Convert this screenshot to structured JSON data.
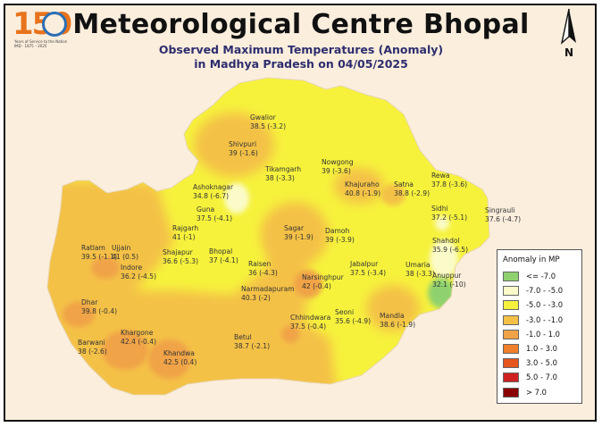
{
  "header": {
    "title": "Meteorological Centre Bhopal",
    "subtitle_line1": "Observed Maximum Temperatures (Anomaly)",
    "subtitle_line2": "in Madhya Pradesh on 04/05/2025"
  },
  "logo": {
    "number": "150",
    "caption_line1": "Years of Service to the Nation",
    "caption_line2": "IMD · 1875 – 2025",
    "ring_color": "#2b6fb5",
    "number_color": "#e8731c"
  },
  "north_arrow": {
    "label": "N",
    "icon": "north-arrow-icon"
  },
  "legend": {
    "title": "Anomaly in MP",
    "items": [
      {
        "label": "<= -7.0",
        "color": "#8fd16e"
      },
      {
        "label": "-7.0 - -5.0",
        "color": "#fbfbc9"
      },
      {
        "label": "-5.0 - -3.0",
        "color": "#f6f23c"
      },
      {
        "label": "-3.0 - -1.0",
        "color": "#f4c147"
      },
      {
        "label": "-1.0 - 1.0",
        "color": "#f0a346"
      },
      {
        "label": "1.0 - 3.0",
        "color": "#ef7f2a"
      },
      {
        "label": "3.0 - 5.0",
        "color": "#e4561c"
      },
      {
        "label": "5.0 - 7.0",
        "color": "#cf2121"
      },
      {
        "label": "> 7.0",
        "color": "#8b0000"
      }
    ]
  },
  "stations": [
    {
      "name": "Gwalior",
      "value": "38.5 (-3.2)"
    },
    {
      "name": "Shivpuri",
      "value": "39 (-1.6)"
    },
    {
      "name": "Tikamgarh",
      "value": "38 (-3.3)"
    },
    {
      "name": "Nowgong",
      "value": "39 (-3.6)"
    },
    {
      "name": "Rewa",
      "value": "37.8 (-3.6)"
    },
    {
      "name": "Satna",
      "value": "38.8 (-2.9)"
    },
    {
      "name": "Khajuraho",
      "value": "40.8 (-1.9)"
    },
    {
      "name": "Ashoknagar",
      "value": "34.8 (-6.7)"
    },
    {
      "name": "Guna",
      "value": "37.5 (-4.1)"
    },
    {
      "name": "Sidhi",
      "value": "37.2 (-5.1)"
    },
    {
      "name": "Singrauli",
      "value": "37.6 (-4.7)"
    },
    {
      "name": "Rajgarh",
      "value": "41 (-1)"
    },
    {
      "name": "Sagar",
      "value": "39 (-1.9)"
    },
    {
      "name": "Damoh",
      "value": "39 (-3.9)"
    },
    {
      "name": "Shahdol",
      "value": "35.9 (-6.5)"
    },
    {
      "name": "Ratlam",
      "value": "39.5 (-1.1)"
    },
    {
      "name": "Ujjain",
      "value": "41 (0.5)"
    },
    {
      "name": "Shajapur",
      "value": "36.6 (-5.3)"
    },
    {
      "name": "Bhopal",
      "value": "37 (-4.1)"
    },
    {
      "name": "Raisen",
      "value": "36 (-4.3)"
    },
    {
      "name": "Jabalpur",
      "value": "37.5 (-3.4)"
    },
    {
      "name": "Umaria",
      "value": "38 (-3.3)"
    },
    {
      "name": "Anuppur",
      "value": "32.1 (-10)"
    },
    {
      "name": "Narsinghpur",
      "value": "42 (-0.4)"
    },
    {
      "name": "Indore",
      "value": "36.2 (-4.5)"
    },
    {
      "name": "Narmadapuram",
      "value": "40.3 (-2)"
    },
    {
      "name": "Dhar",
      "value": "39.8 (-0.4)"
    },
    {
      "name": "Chhindwara",
      "value": "37.5 (-0.4)"
    },
    {
      "name": "Seoni",
      "value": "35.6 (-4.9)"
    },
    {
      "name": "Mandla",
      "value": "38.6 (-1.9)"
    },
    {
      "name": "Khargone",
      "value": "42.4 (-0.4)"
    },
    {
      "name": "Barwani",
      "value": "38 (-2.6)"
    },
    {
      "name": "Betul",
      "value": "38.7 (-2.1)"
    },
    {
      "name": "Khandwa",
      "value": "42.5 (0.4)"
    }
  ]
}
